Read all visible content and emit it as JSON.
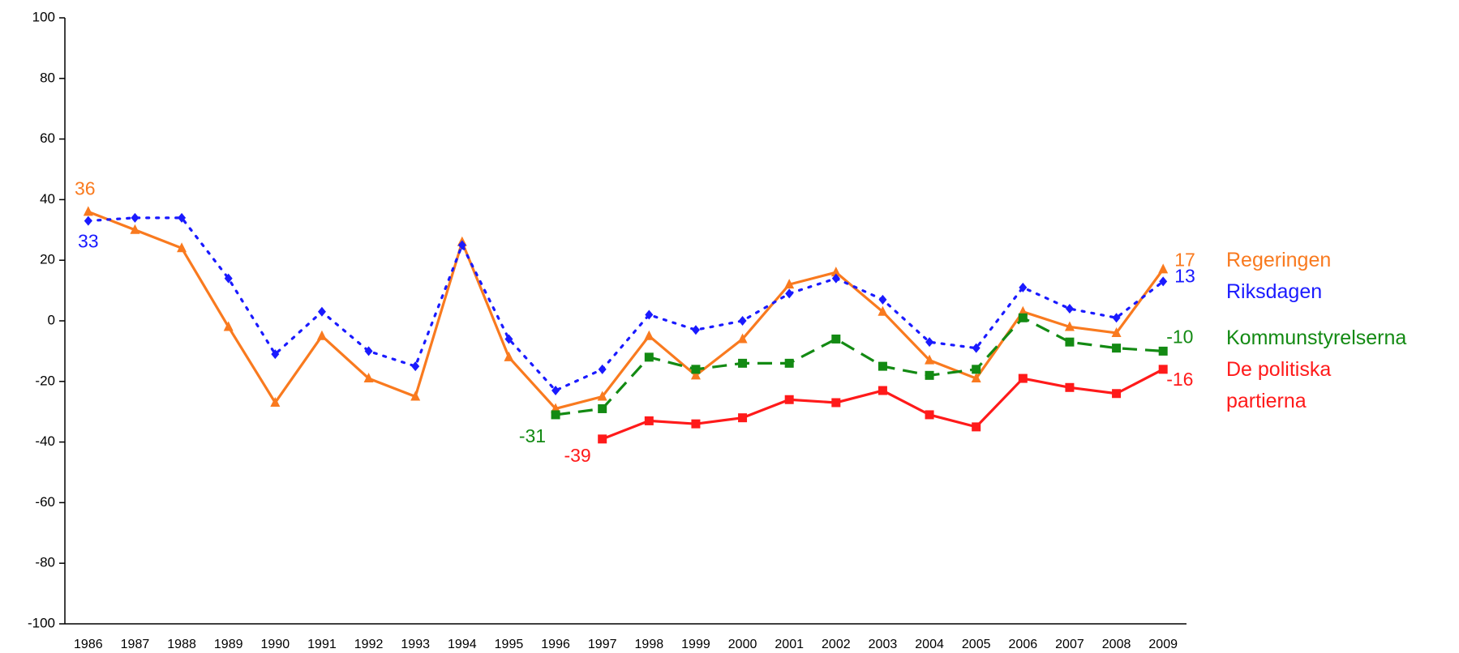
{
  "chart_data": {
    "type": "line",
    "categories": [
      "1986",
      "1987",
      "1988",
      "1989",
      "1990",
      "1991",
      "1992",
      "1993",
      "1994",
      "1995",
      "1996",
      "1997",
      "1998",
      "1999",
      "2000",
      "2001",
      "2002",
      "2003",
      "2004",
      "2005",
      "2006",
      "2007",
      "2008",
      "2009"
    ],
    "ylim": [
      -100,
      100
    ],
    "yticks": [
      -100,
      -80,
      -60,
      -40,
      -20,
      0,
      20,
      40,
      60,
      80,
      100
    ],
    "grid": false,
    "legend": "right",
    "series": [
      {
        "name": "Regeringen",
        "color": "#f97a1f",
        "dash": "solid",
        "marker": "triangle",
        "values": [
          36,
          30,
          24,
          -2,
          -27,
          -5,
          -19,
          -25,
          26,
          -12,
          -29,
          -25,
          -5,
          -18,
          -6,
          12,
          16,
          3,
          -13,
          -19,
          3,
          -2,
          -4,
          17
        ]
      },
      {
        "name": "Riksdagen",
        "color": "#1a1aff",
        "dash": "dotted",
        "marker": "diamond",
        "values": [
          33,
          34,
          34,
          14,
          -11,
          3,
          -10,
          -15,
          25,
          -6,
          -23,
          -16,
          2,
          -3,
          0,
          9,
          14,
          7,
          -7,
          -9,
          11,
          4,
          1,
          13
        ]
      },
      {
        "name": "Kommunstyrelserna",
        "color": "#138a13",
        "dash": "dashed",
        "marker": "square",
        "values": [
          null,
          null,
          null,
          null,
          null,
          null,
          null,
          null,
          null,
          null,
          -31,
          -29,
          -12,
          -16,
          -14,
          -14,
          -6,
          -15,
          -18,
          -16,
          1,
          -7,
          -9,
          -10
        ]
      },
      {
        "name": "De politiska partierna",
        "color": "#ff1a1a",
        "dash": "solid",
        "marker": "square",
        "values": [
          null,
          null,
          null,
          null,
          null,
          null,
          null,
          null,
          null,
          null,
          null,
          -39,
          -33,
          -34,
          -32,
          -26,
          -27,
          -23,
          -31,
          -35,
          -19,
          -22,
          -24,
          -16
        ]
      }
    ]
  }
}
